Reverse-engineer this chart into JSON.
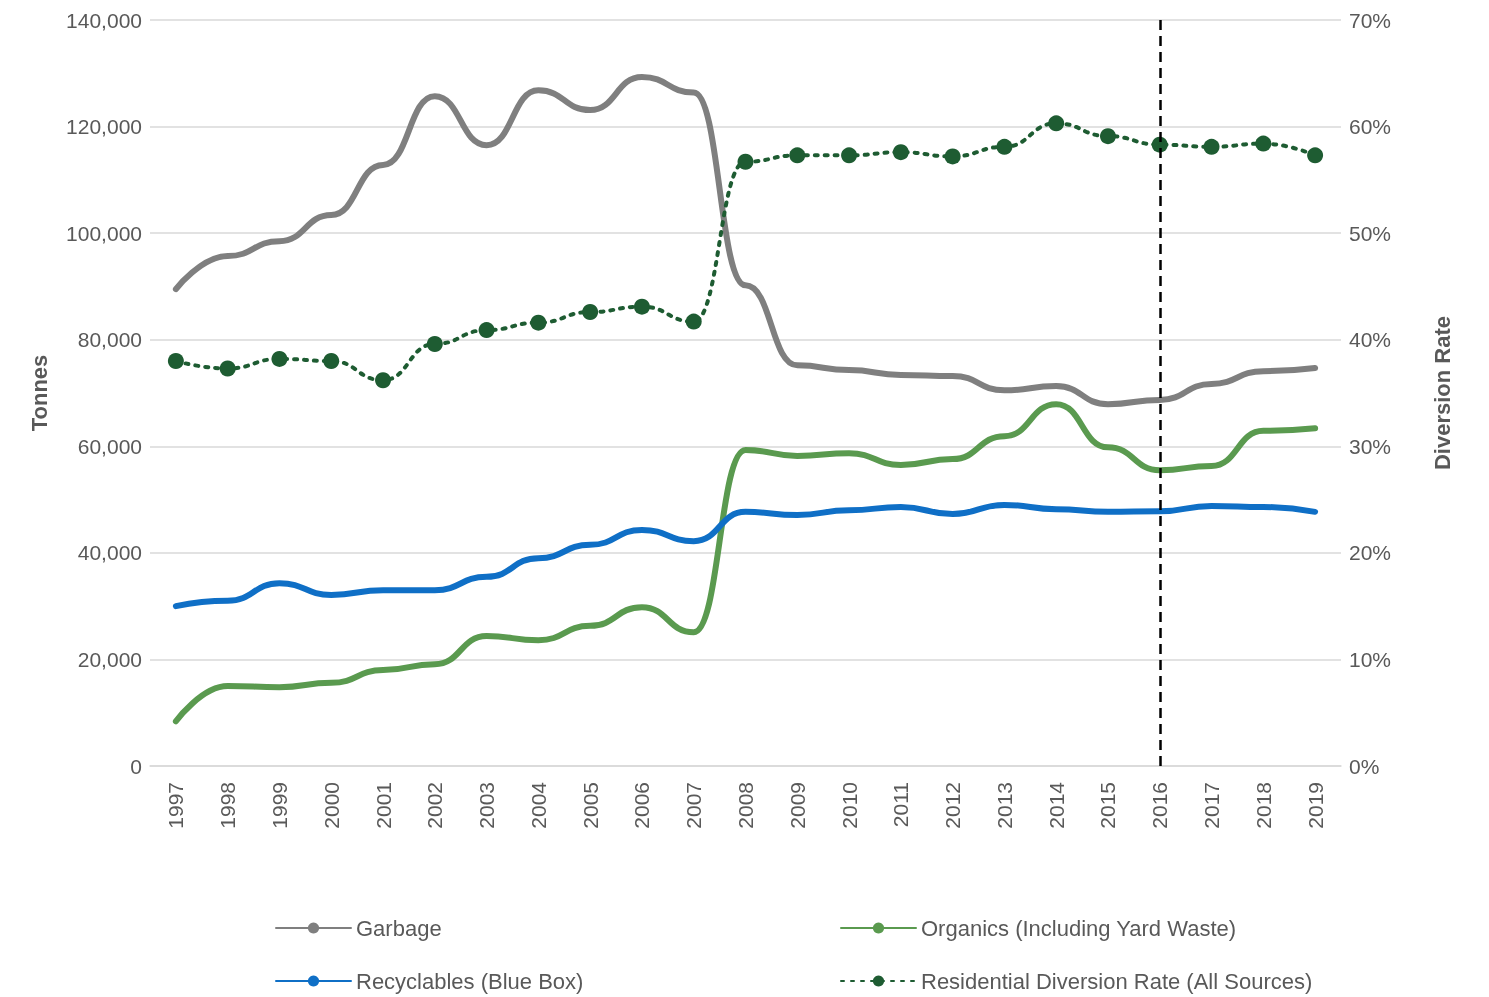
{
  "chart_data": {
    "type": "line",
    "ylabel": "Tonnes",
    "y2label": "Diversion Rate",
    "categories": [
      "1997",
      "1998",
      "1999",
      "2000",
      "2001",
      "2002",
      "2003",
      "2004",
      "2005",
      "2006",
      "2007",
      "2008",
      "2009",
      "2010",
      "2011",
      "2012",
      "2013",
      "2014",
      "2015",
      "2016",
      "2017",
      "2018",
      "2019"
    ],
    "series": [
      {
        "name": "Garbage",
        "color": "#7f7f7f",
        "values": [
          89500,
          95700,
          98500,
          103400,
          112800,
          125700,
          116500,
          126800,
          123100,
          129300,
          126400,
          90200,
          75200,
          74300,
          73400,
          73200,
          70500,
          71300,
          67900,
          68700,
          71700,
          74100,
          74700
        ]
      },
      {
        "name": "Organics (Including Yard Waste)",
        "color": "#5a9a4f",
        "values": [
          8400,
          15000,
          14800,
          15600,
          18000,
          19100,
          24400,
          23600,
          26300,
          29800,
          25100,
          59300,
          58200,
          58700,
          56500,
          57600,
          61900,
          67900,
          59800,
          55500,
          56300,
          62900,
          63400
        ]
      },
      {
        "name": "Recyclables (Blue Box)",
        "color": "#0f6fc6",
        "values": [
          30000,
          31000,
          34300,
          32100,
          33000,
          33000,
          35500,
          39000,
          41500,
          44300,
          42200,
          47700,
          47100,
          48000,
          48600,
          47300,
          49000,
          48200,
          47700,
          47800,
          48800,
          48600,
          47700
        ]
      },
      {
        "name": "Residential Diversion Rate (All Sources)",
        "color": "#1e5c32",
        "axis": "y2",
        "marker": "circle",
        "line_style": "dotted",
        "values": [
          38.0,
          37.3,
          38.2,
          38.0,
          36.2,
          39.6,
          40.9,
          41.6,
          42.6,
          43.1,
          41.7,
          56.7,
          57.3,
          57.3,
          57.6,
          57.2,
          58.1,
          60.3,
          59.1,
          58.3,
          58.1,
          58.4,
          57.3
        ]
      }
    ],
    "ylim": [
      0,
      140000
    ],
    "yticks": [
      {
        "value": 0,
        "label": "0"
      },
      {
        "value": 20000,
        "label": "20,000"
      },
      {
        "value": 40000,
        "label": "40,000"
      },
      {
        "value": 60000,
        "label": "60,000"
      },
      {
        "value": 80000,
        "label": "80,000"
      },
      {
        "value": 100000,
        "label": "100,000"
      },
      {
        "value": 120000,
        "label": "120,000"
      },
      {
        "value": 140000,
        "label": "140,000"
      }
    ],
    "y2lim": [
      0,
      70
    ],
    "y2ticks": [
      {
        "value": 0,
        "label": "0%"
      },
      {
        "value": 10,
        "label": "10%"
      },
      {
        "value": 20,
        "label": "20%"
      },
      {
        "value": 30,
        "label": "30%"
      },
      {
        "value": 40,
        "label": "40%"
      },
      {
        "value": 50,
        "label": "50%"
      },
      {
        "value": 60,
        "label": "60%"
      },
      {
        "value": 70,
        "label": "70%"
      }
    ],
    "ref_lines": [
      {
        "axis": "x",
        "value": "2016",
        "color": "#000000",
        "line_style": "dashed"
      }
    ],
    "grid": "y",
    "legend": "bottom",
    "marker": "none",
    "line_style": "solid"
  }
}
